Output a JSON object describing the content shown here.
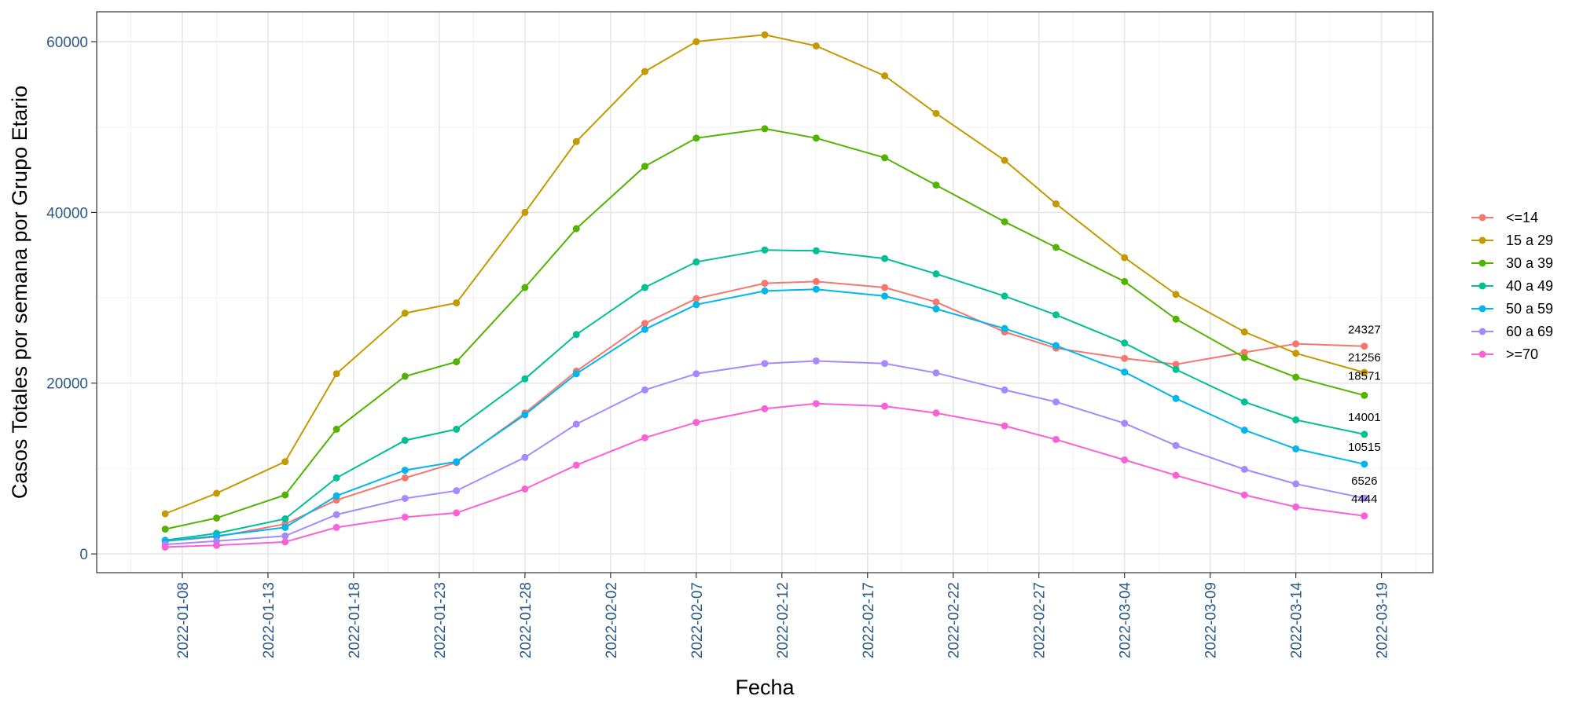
{
  "chart_data": {
    "type": "line",
    "xlabel": "Fecha",
    "ylabel": "Casos Totales por semana por Grupo Etario",
    "x": [
      "2022-01-07",
      "2022-01-10",
      "2022-01-14",
      "2022-01-17",
      "2022-01-21",
      "2022-01-24",
      "2022-01-28",
      "2022-01-31",
      "2022-02-04",
      "2022-02-07",
      "2022-02-11",
      "2022-02-14",
      "2022-02-18",
      "2022-02-21",
      "2022-02-25",
      "2022-02-28",
      "2022-03-04",
      "2022-03-07",
      "2022-03-11",
      "2022-03-14",
      "2022-03-18"
    ],
    "x_ticks": [
      "2022-01-08",
      "2022-01-13",
      "2022-01-18",
      "2022-01-23",
      "2022-01-28",
      "2022-02-02",
      "2022-02-07",
      "2022-02-12",
      "2022-02-17",
      "2022-02-22",
      "2022-02-27",
      "2022-03-04",
      "2022-03-09",
      "2022-03-14",
      "2022-03-19"
    ],
    "xlim": [
      "2022-01-03",
      "2022-03-22"
    ],
    "y_ticks": [
      0,
      20000,
      40000,
      60000
    ],
    "ylim": [
      -2200,
      63500
    ],
    "grid": true,
    "legend_position": "right",
    "series": [
      {
        "name": "<=14",
        "color": "#F8766D",
        "values": [
          1500,
          2000,
          3500,
          6300,
          8900,
          10700,
          16500,
          21400,
          27000,
          29900,
          31700,
          31900,
          31200,
          29500,
          26000,
          24100,
          22900,
          22200,
          23600,
          24600,
          24327
        ]
      },
      {
        "name": "15 a 29",
        "color": "#C49A00",
        "values": [
          4700,
          7100,
          10800,
          21100,
          28200,
          29400,
          40000,
          48300,
          56500,
          60000,
          60800,
          59500,
          56000,
          51600,
          46100,
          41000,
          34700,
          30400,
          26000,
          23500,
          21256
        ]
      },
      {
        "name": "30 a 39",
        "color": "#53B400",
        "values": [
          2900,
          4200,
          6900,
          14600,
          20800,
          22500,
          31200,
          38100,
          45400,
          48700,
          49800,
          48700,
          46400,
          43200,
          38900,
          35900,
          31900,
          27500,
          23000,
          20700,
          18571
        ]
      },
      {
        "name": "40 a 49",
        "color": "#00C094",
        "values": [
          1600,
          2400,
          4100,
          8900,
          13300,
          14600,
          20500,
          25700,
          31200,
          34200,
          35600,
          35500,
          34600,
          32800,
          30200,
          28000,
          24700,
          21600,
          17800,
          15700,
          14001
        ]
      },
      {
        "name": "50 a 59",
        "color": "#00B6EB",
        "values": [
          1500,
          2100,
          3100,
          6800,
          9800,
          10800,
          16300,
          21100,
          26300,
          29200,
          30800,
          31000,
          30200,
          28700,
          26400,
          24400,
          21300,
          18200,
          14500,
          12300,
          10515
        ]
      },
      {
        "name": "60 a 69",
        "color": "#A58AFF",
        "values": [
          1100,
          1500,
          2100,
          4600,
          6500,
          7400,
          11300,
          15200,
          19200,
          21100,
          22300,
          22600,
          22300,
          21200,
          19200,
          17800,
          15300,
          12700,
          9900,
          8200,
          6526
        ]
      },
      {
        "name": ">=70",
        "color": "#FB61D7",
        "values": [
          800,
          1000,
          1400,
          3100,
          4300,
          4800,
          7600,
          10400,
          13600,
          15400,
          17000,
          17600,
          17300,
          16500,
          15000,
          13400,
          11000,
          9200,
          6900,
          5500,
          4444
        ]
      }
    ],
    "end_labels": [
      "24327",
      "21256",
      "18571",
      "14001",
      "10515",
      "6526",
      "4444"
    ]
  }
}
